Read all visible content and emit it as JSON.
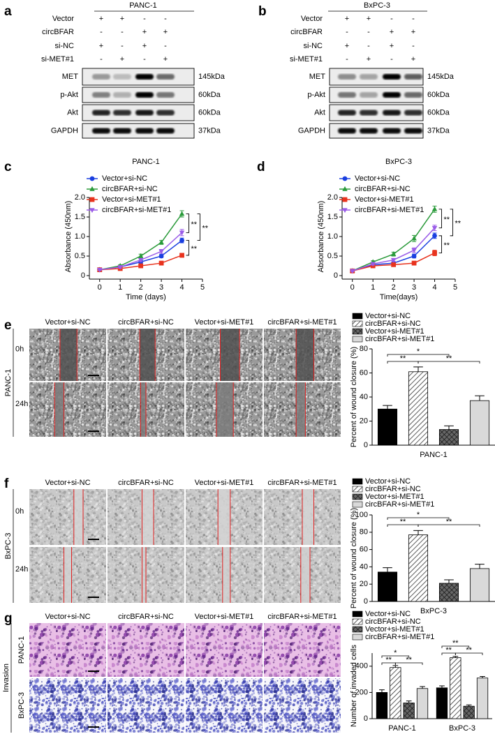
{
  "panels": {
    "a": {
      "label": "a",
      "title": "PANC-1",
      "conditions": [
        {
          "name": "Vector",
          "signs": [
            "+",
            "+",
            "-",
            "-"
          ]
        },
        {
          "name": "circBFAR",
          "signs": [
            "-",
            "-",
            "+",
            "+"
          ]
        },
        {
          "name": "si-NC",
          "signs": [
            "+",
            "-",
            "+",
            "-"
          ]
        },
        {
          "name": "si-MET#1",
          "signs": [
            "-",
            "+",
            "-",
            "+"
          ]
        }
      ],
      "bands": [
        {
          "name": "MET",
          "size": "145kDa"
        },
        {
          "name": "p-Akt",
          "size": "60kDa"
        },
        {
          "name": "Akt",
          "size": "60kDa"
        },
        {
          "name": "GAPDH",
          "size": "37kDa"
        }
      ]
    },
    "b": {
      "label": "b",
      "title": "BxPC-3",
      "conditions": [
        {
          "name": "Vector",
          "signs": [
            "+",
            "+",
            "-",
            "-"
          ]
        },
        {
          "name": "circBFAR",
          "signs": [
            "-",
            "-",
            "+",
            "+"
          ]
        },
        {
          "name": "si-NC",
          "signs": [
            "+",
            "-",
            "+",
            "-"
          ]
        },
        {
          "name": "si-MET#1",
          "signs": [
            "-",
            "+",
            "-",
            "+"
          ]
        }
      ],
      "bands": [
        {
          "name": "MET",
          "size": "145kDa"
        },
        {
          "name": "p-Akt",
          "size": "60kDa"
        },
        {
          "name": "Akt",
          "size": "60kDa"
        },
        {
          "name": "GAPDH",
          "size": "37kDa"
        }
      ]
    },
    "e": {
      "label": "e",
      "columns": [
        "Vector+si-NC",
        "circBFAR+si-NC",
        "Vector+si-MET#1",
        "circBFAR+si-MET#1"
      ],
      "side": "PANC-1",
      "rows": [
        "0h",
        "24h"
      ]
    },
    "f": {
      "label": "f",
      "columns": [
        "Vector+si-NC",
        "circBFAR+si-NC",
        "Vector+si-MET#1",
        "circBFAR+si-MET#1"
      ],
      "side": "BxPC-3",
      "rows": [
        "0h",
        "24h"
      ]
    },
    "g": {
      "label": "g",
      "columns": [
        "Vector+si-NC",
        "circBFAR+si-NC",
        "Vector+si-MET#1",
        "circBFAR+si-MET#1"
      ],
      "side": "Invasion",
      "rows": [
        "PANC-1",
        "BxPC-3"
      ]
    }
  },
  "chart_data": [
    {
      "panel": "c",
      "type": "line",
      "title": "PANC-1",
      "xlabel": "Time (days)",
      "ylabel": "Absorbance  (450nm)",
      "x": [
        0,
        1,
        2,
        3,
        4
      ],
      "xlim": [
        -0.5,
        5
      ],
      "xticks": [
        0,
        1,
        2,
        3,
        4,
        5
      ],
      "ylim": [
        0,
        2
      ],
      "yticks": [
        0,
        0.5,
        {
          "value": 1,
          "label": "1.0"
        },
        1.5,
        {
          "value": 2,
          "label": "2.0"
        }
      ],
      "legend": "upper left",
      "series": [
        {
          "name": "Vector+si-NC",
          "color": "#1a3fe0",
          "marker": "circle",
          "values": [
            0.15,
            0.22,
            0.35,
            0.5,
            0.9
          ],
          "errors": [
            0.02,
            0.03,
            0.04,
            0.04,
            0.06
          ]
        },
        {
          "name": "circBFAR+si-NC",
          "color": "#2a9a3a",
          "marker": "triangle",
          "values": [
            0.15,
            0.25,
            0.5,
            0.85,
            1.58
          ],
          "errors": [
            0.02,
            0.03,
            0.05,
            0.05,
            0.08
          ]
        },
        {
          "name": "Vector+si-MET#1",
          "color": "#e8331e",
          "marker": "square",
          "values": [
            0.15,
            0.18,
            0.25,
            0.32,
            0.52
          ],
          "errors": [
            0.02,
            0.02,
            0.03,
            0.04,
            0.05
          ]
        },
        {
          "name": "circBFAR+si-MET#1",
          "color": "#9a5ce8",
          "marker": "triangle-down",
          "values": [
            0.15,
            0.22,
            0.4,
            0.62,
            1.1
          ],
          "errors": [
            0.02,
            0.03,
            0.04,
            0.05,
            0.08
          ]
        }
      ],
      "annotations": [
        "**",
        "**",
        "**"
      ]
    },
    {
      "panel": "d",
      "type": "line",
      "title": "BxPC-3",
      "xlabel": "Time(days)",
      "ylabel": "Absorbance  (450nm)",
      "x": [
        0,
        1,
        2,
        3,
        4
      ],
      "xlim": [
        -0.5,
        5
      ],
      "xticks": [
        0,
        1,
        2,
        3,
        4,
        5
      ],
      "ylim": [
        0,
        2
      ],
      "yticks": [
        0,
        0.5,
        {
          "value": 1,
          "label": "1.0"
        },
        1.5,
        {
          "value": 2,
          "label": "2.0"
        }
      ],
      "legend": "upper left",
      "series": [
        {
          "name": "Vector+si-NC",
          "color": "#1a3fe0",
          "marker": "circle",
          "values": [
            0.12,
            0.28,
            0.32,
            0.5,
            1.02
          ],
          "errors": [
            0.02,
            0.03,
            0.04,
            0.05,
            0.07
          ]
        },
        {
          "name": "circBFAR+si-NC",
          "color": "#2a9a3a",
          "marker": "triangle",
          "values": [
            0.12,
            0.35,
            0.55,
            0.95,
            1.7
          ],
          "errors": [
            0.02,
            0.03,
            0.05,
            0.08,
            0.08
          ]
        },
        {
          "name": "Vector+si-MET#1",
          "color": "#e8331e",
          "marker": "square",
          "values": [
            0.12,
            0.25,
            0.28,
            0.32,
            0.58
          ],
          "errors": [
            0.02,
            0.02,
            0.03,
            0.04,
            0.07
          ]
        },
        {
          "name": "circBFAR+si-MET#1",
          "color": "#9a5ce8",
          "marker": "triangle-down",
          "values": [
            0.12,
            0.3,
            0.4,
            0.65,
            1.22
          ],
          "errors": [
            0.02,
            0.03,
            0.04,
            0.06,
            0.07
          ]
        }
      ],
      "annotations": [
        "**",
        "**",
        "**"
      ]
    },
    {
      "type": "bar",
      "categories": [
        "PANC-1"
      ],
      "ylabel": "Percent of wound closure (%)",
      "ylim": [
        0,
        80
      ],
      "yticks": [
        0,
        20,
        40,
        60,
        80
      ],
      "legend": "upper left",
      "series": [
        {
          "name": "Vector+si-NC",
          "color": "#000000",
          "pattern": "solid",
          "values": [
            30
          ],
          "errors": [
            3
          ]
        },
        {
          "name": "circBFAR+si-NC",
          "color": "#ffffff",
          "pattern": "diagonal",
          "values": [
            61
          ],
          "errors": [
            4
          ]
        },
        {
          "name": "Vector+si-MET#1",
          "color": "#555555",
          "pattern": "crosshatch",
          "values": [
            13
          ],
          "errors": [
            3
          ]
        },
        {
          "name": "circBFAR+si-MET#1",
          "color": "#d9d9d9",
          "pattern": "solid",
          "values": [
            37
          ],
          "errors": [
            4
          ]
        }
      ],
      "annotations": [
        "*",
        "**",
        "**"
      ]
    },
    {
      "type": "bar",
      "categories": [
        "BxPC-3"
      ],
      "ylabel": "Percent of wound closure (%)",
      "ylim": [
        0,
        100
      ],
      "yticks": [
        0,
        20,
        40,
        60,
        80,
        100
      ],
      "legend": "upper left",
      "series": [
        {
          "name": "Vector+si-NC",
          "color": "#000000",
          "pattern": "solid",
          "values": [
            34
          ],
          "errors": [
            5
          ]
        },
        {
          "name": "circBFAR+si-NC",
          "color": "#ffffff",
          "pattern": "diagonal",
          "values": [
            77
          ],
          "errors": [
            5
          ]
        },
        {
          "name": "Vector+si-MET#1",
          "color": "#555555",
          "pattern": "crosshatch",
          "values": [
            21
          ],
          "errors": [
            4
          ]
        },
        {
          "name": "circBFAR+si-MET#1",
          "color": "#d9d9d9",
          "pattern": "solid",
          "values": [
            38
          ],
          "errors": [
            5
          ]
        }
      ],
      "annotations": [
        "*",
        "**",
        "**"
      ]
    },
    {
      "type": "bar",
      "categories": [
        "PANC-1",
        "BxPC-3"
      ],
      "ylabel": "Number of invaded cells",
      "ylim": [
        0,
        500
      ],
      "yticks": [
        0,
        200,
        400
      ],
      "legend": "upper left",
      "series": [
        {
          "name": "Vector+si-NC",
          "color": "#000000",
          "pattern": "solid",
          "values": [
            200,
            235
          ],
          "errors": [
            20,
            15
          ]
        },
        {
          "name": "circBFAR+si-NC",
          "color": "#ffffff",
          "pattern": "diagonal",
          "values": [
            390,
            465
          ],
          "errors": [
            15,
            10
          ]
        },
        {
          "name": "Vector+si-MET#1",
          "color": "#555555",
          "pattern": "crosshatch",
          "values": [
            120,
            95
          ],
          "errors": [
            15,
            10
          ]
        },
        {
          "name": "circBFAR+si-MET#1",
          "color": "#d9d9d9",
          "pattern": "solid",
          "values": [
            230,
            310
          ],
          "errors": [
            15,
            12
          ]
        }
      ],
      "annotations": [
        "*",
        "**",
        "**",
        "**",
        "**",
        "**"
      ]
    }
  ]
}
